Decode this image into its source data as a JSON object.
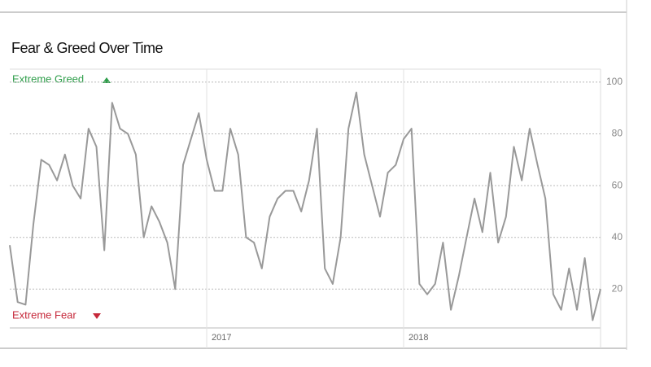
{
  "chart_data": {
    "type": "line",
    "title": "Fear & Greed Over Time",
    "greed_label": "Extreme Greed",
    "fear_label": "Extreme Fear",
    "color": "#999999",
    "x": [
      2016.0,
      2016.04,
      2016.08,
      2016.12,
      2016.16,
      2016.2,
      2016.24,
      2016.28,
      2016.32,
      2016.36,
      2016.4,
      2016.44,
      2016.48,
      2016.52,
      2016.56,
      2016.6,
      2016.64,
      2016.68,
      2016.72,
      2016.76,
      2016.8,
      2016.84,
      2016.88,
      2016.92,
      2016.96,
      2017.0,
      2017.04,
      2017.08,
      2017.12,
      2017.16,
      2017.2,
      2017.24,
      2017.28,
      2017.32,
      2017.36,
      2017.4,
      2017.44,
      2017.48,
      2017.52,
      2017.56,
      2017.6,
      2017.64,
      2017.68,
      2017.72,
      2017.76,
      2017.8,
      2017.84,
      2017.88,
      2017.92,
      2017.96,
      2018.0,
      2018.04,
      2018.08,
      2018.12,
      2018.16,
      2018.2,
      2018.24,
      2018.28,
      2018.32,
      2018.36,
      2018.4,
      2018.44,
      2018.48,
      2018.52,
      2018.56,
      2018.6,
      2018.64,
      2018.68,
      2018.72,
      2018.76,
      2018.8,
      2018.84,
      2018.88,
      2018.92,
      2018.96,
      2019.0
    ],
    "values": [
      37,
      15,
      14,
      45,
      70,
      68,
      62,
      72,
      60,
      55,
      82,
      75,
      35,
      92,
      82,
      80,
      72,
      40,
      52,
      46,
      38,
      20,
      68,
      78,
      88,
      70,
      58,
      58,
      82,
      72,
      40,
      38,
      28,
      48,
      55,
      58,
      58,
      50,
      62,
      82,
      28,
      22,
      40,
      82,
      96,
      72,
      60,
      48,
      65,
      68,
      78,
      82,
      22,
      18,
      22,
      38,
      12,
      25,
      40,
      55,
      42,
      65,
      38,
      48,
      75,
      62,
      82,
      68,
      55,
      18,
      12,
      28,
      12,
      32,
      8,
      20
    ],
    "xlim": [
      2016.0,
      2019.0
    ],
    "xticks": [
      2017,
      2018
    ],
    "ylim": [
      5,
      105
    ],
    "yticks": [
      20,
      40,
      60,
      80,
      100
    ],
    "grid": true
  }
}
